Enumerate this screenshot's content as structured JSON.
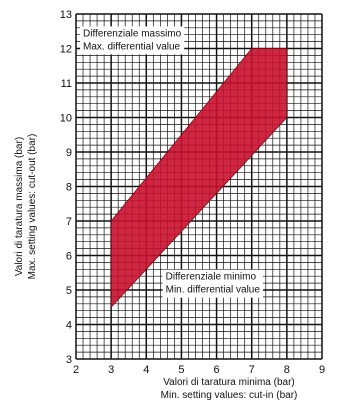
{
  "chart_data": {
    "type": "area",
    "title": "",
    "xlabel": [
      "Valori di taratura minima (bar)",
      "Min. setting values: cut-in (bar)"
    ],
    "ylabel": [
      "Valori di taratura massima (bar)",
      "Max. setting values: cut-out (bar)"
    ],
    "xlim": [
      2,
      9
    ],
    "ylim": [
      3,
      13
    ],
    "x_ticks": [
      "2",
      "3",
      "4",
      "5",
      "6",
      "7",
      "8",
      "9"
    ],
    "y_ticks": [
      "3",
      "4",
      "5",
      "6",
      "7",
      "8",
      "9",
      "10",
      "11",
      "12",
      "13"
    ],
    "grid": true,
    "grid_minor_step": 0.2,
    "region": {
      "polygon": [
        {
          "x": 3,
          "y": 4.5
        },
        {
          "x": 3,
          "y": 7
        },
        {
          "x": 7,
          "y": 12
        },
        {
          "x": 8,
          "y": 12
        },
        {
          "x": 8,
          "y": 10
        },
        {
          "x": 3,
          "y": 4.5
        }
      ],
      "polygon_shape": [
        {
          "x": 3,
          "y": 4.5
        },
        {
          "x": 3,
          "y": 7
        },
        {
          "x": 7,
          "y": 12
        },
        {
          "x": 8,
          "y": 12
        },
        {
          "x": 8,
          "y": 10
        }
      ],
      "color": "#c8102e",
      "stroke": "#7a0c14"
    },
    "annotations": [
      {
        "name": "max-differential",
        "lines": [
          "Differenziale massimo",
          "Max. differential value"
        ],
        "x": 2.2,
        "y": 12.35
      },
      {
        "name": "min-differential",
        "lines": [
          "Differenziale minimo",
          "Min. differential value"
        ],
        "x": 4.55,
        "y": 5.3
      }
    ]
  },
  "colors": {
    "grid": "#111111",
    "background": "#ffffff",
    "region_fill": "#c8102e",
    "region_stroke": "#7a0c14"
  }
}
